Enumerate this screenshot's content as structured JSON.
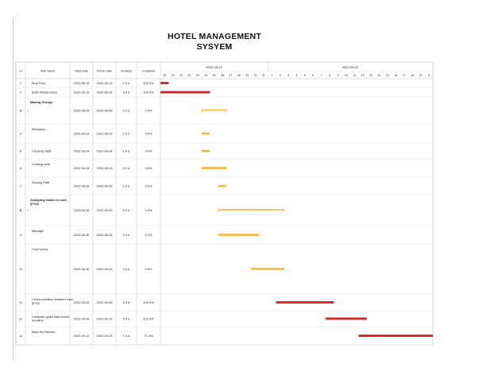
{
  "title_line1": "HOTEL MANAGEMENT",
  "title_line2": "SYSYEM",
  "table": {
    "headers": [
      "Id",
      "Task Name",
      "Start Date",
      "Finish Date",
      "Duration",
      "Complete"
    ]
  },
  "timeline": {
    "week_labels": [
      "2022-08-19",
      "2022-09-01"
    ],
    "day_labels": [
      "19",
      "20",
      "21",
      "22",
      "23",
      "24",
      "25",
      "26",
      "27",
      "28",
      "29",
      "30",
      "31",
      "1",
      "2",
      "3",
      "4",
      "5",
      "6",
      "7",
      "8",
      "9",
      "10",
      "11",
      "12",
      "13",
      "14",
      "15",
      "16",
      "17",
      "18",
      "19",
      "2"
    ]
  },
  "colors": {
    "done": "#d62020",
    "pending": "#f2b93b",
    "grid": "#e4e4e4",
    "border": "#bdbdbd"
  },
  "chart_data": {
    "type": "gantt",
    "title": "HOTEL MANAGEMENT SYSYEM",
    "x_start": "2022-08-19",
    "x_end": "2022-09-20",
    "tasks": [
      {
        "id": "1",
        "name": "Blue Print",
        "start": "2022-08-19",
        "finish": "2022-08-19",
        "duration": "1.0 d",
        "complete": "100.0%",
        "status": "done",
        "bar_start": "2022-08-19",
        "bar_end": "2022-08-20",
        "bold": false,
        "group": false
      },
      {
        "id": "2",
        "name": "Build infrastructure",
        "start": "2022-08-19",
        "finish": "2022-08-24",
        "duration": "6.0 d",
        "complete": "100.0%",
        "status": "done",
        "bar_start": "2022-08-19",
        "bar_end": "2022-08-25",
        "bold": false,
        "group": false
      },
      {
        "id": "3",
        "name": "Making Groups",
        "start": "2022-08-24",
        "finish": "2022-08-26",
        "duration": "3.0 d",
        "complete": "0.0%",
        "status": "pending",
        "bar_start": "2022-08-24",
        "bar_end": "2022-08-27",
        "bold": true,
        "group": true
      },
      {
        "id": "4",
        "name": "Reception",
        "start": "2022-08-24",
        "finish": "2022-08-24",
        "duration": "1.0 d",
        "complete": "0.0%",
        "status": "pending",
        "bar_start": "2022-08-24",
        "bar_end": "2022-08-25",
        "bold": false,
        "group": false
      },
      {
        "id": "5",
        "name": "Cleaning Staff",
        "start": "2022-08-24",
        "finish": "2022-08-24",
        "duration": "1.0 d",
        "complete": "0.0%",
        "status": "pending",
        "bar_start": "2022-08-24",
        "bar_end": "2022-08-25",
        "bold": false,
        "group": false
      },
      {
        "id": "6",
        "name": "Cooking staff",
        "start": "2022-08-24",
        "finish": "2022-08-26",
        "duration": "3.0 d",
        "complete": "0.0%",
        "status": "pending",
        "bar_start": "2022-08-24",
        "bar_end": "2022-08-27",
        "bold": false,
        "group": false
      },
      {
        "id": "7",
        "name": "Serving Staff",
        "start": "2022-08-26",
        "finish": "2022-08-26",
        "duration": "1.0 d",
        "complete": "0.0%",
        "status": "pending",
        "bar_start": "2022-08-26",
        "bar_end": "2022-08-27",
        "bold": false,
        "group": false
      },
      {
        "id": "8",
        "name": "Assigning leader to each group",
        "start": "2022-08-26",
        "finish": "2022-09-02",
        "duration": "6.0 d",
        "complete": "0.0%",
        "status": "pending",
        "bar_start": "2022-08-26",
        "bar_end": "2022-09-03",
        "bold": true,
        "group": true
      },
      {
        "id": "9",
        "name": "Manager",
        "start": "2022-08-26",
        "finish": "2022-08-30",
        "duration": "3.0 d",
        "complete": "0.0%",
        "status": "pending",
        "bar_start": "2022-08-26",
        "bar_end": "2022-08-31",
        "bold": false,
        "group": false
      },
      {
        "id": "10",
        "name": "Cm(Comm)",
        "start": "2022-08-30",
        "finish": "2022-09-02",
        "duration": "4.0 d",
        "complete": "0.0%",
        "status": "pending",
        "bar_start": "2022-08-30",
        "bar_end": "2022-09-03",
        "bold": false,
        "group": false
      },
      {
        "id": "11",
        "name": "Communication between each group",
        "start": "2022-09-02",
        "finish": "2022-09-08",
        "duration": "5.0 d",
        "complete": "100.0%",
        "status": "done",
        "bar_start": "2022-09-02",
        "bar_end": "2022-09-09",
        "bold": false,
        "group": false
      },
      {
        "id": "12",
        "name": "Complete given task before deadline",
        "start": "2022-09-08",
        "finish": "2022-09-12",
        "duration": "3.0 d",
        "complete": "100.0%",
        "status": "done",
        "bar_start": "2022-09-08",
        "bar_end": "2022-09-13",
        "bold": false,
        "group": false
      },
      {
        "id": "13",
        "name": "Mark the Review",
        "start": "2022-09-12",
        "finish": "2022-09-20",
        "duration": "7.0 d",
        "complete": "71.4%",
        "status": "done",
        "bar_start": "2022-09-12",
        "bar_end": "2022-09-21",
        "bold": false,
        "group": false
      }
    ]
  }
}
